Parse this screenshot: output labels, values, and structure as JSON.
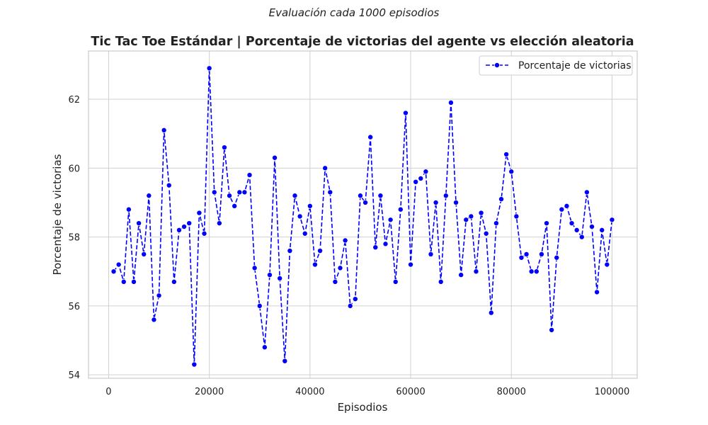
{
  "figure": {
    "suptitle": "Evaluación cada 1000 episodios"
  },
  "chart_data": {
    "type": "line",
    "title": "Tic Tac Toe Estándar | Porcentaje de victorias del agente vs elección aleatoria",
    "xlabel": "Episodios",
    "ylabel": "Porcentaje de victorias",
    "xlim": [
      -4000,
      105000
    ],
    "ylim": [
      53.9,
      63.4
    ],
    "xticks": [
      0,
      20000,
      40000,
      60000,
      80000,
      100000
    ],
    "yticks": [
      54,
      56,
      58,
      60,
      62
    ],
    "grid": true,
    "legend_position": "top-right",
    "colors": {
      "series": "#0000ff",
      "grid": "#d0d0d0",
      "spine": "#cccccc"
    },
    "line_style": "dashed",
    "marker": "circle",
    "series": [
      {
        "name": "Porcentaje de victorias",
        "x": [
          1000,
          2000,
          3000,
          4000,
          5000,
          6000,
          7000,
          8000,
          9000,
          10000,
          11000,
          12000,
          13000,
          14000,
          15000,
          16000,
          17000,
          18000,
          19000,
          20000,
          21000,
          22000,
          23000,
          24000,
          25000,
          26000,
          27000,
          28000,
          29000,
          30000,
          31000,
          32000,
          33000,
          34000,
          35000,
          36000,
          37000,
          38000,
          39000,
          40000,
          41000,
          42000,
          43000,
          44000,
          45000,
          46000,
          47000,
          48000,
          49000,
          50000,
          51000,
          52000,
          53000,
          54000,
          55000,
          56000,
          57000,
          58000,
          59000,
          60000,
          61000,
          62000,
          63000,
          64000,
          65000,
          66000,
          67000,
          68000,
          69000,
          70000,
          71000,
          72000,
          73000,
          74000,
          75000,
          76000,
          77000,
          78000,
          79000,
          80000,
          81000,
          82000,
          83000,
          84000,
          85000,
          86000,
          87000,
          88000,
          89000,
          90000,
          91000,
          92000,
          93000,
          94000,
          95000,
          96000,
          97000,
          98000,
          99000,
          100000
        ],
        "y": [
          57.0,
          57.2,
          56.7,
          58.8,
          56.7,
          58.4,
          57.5,
          59.2,
          55.6,
          56.3,
          61.1,
          59.5,
          56.7,
          58.2,
          58.3,
          58.4,
          54.3,
          58.7,
          58.1,
          62.9,
          59.3,
          58.4,
          60.6,
          59.2,
          58.9,
          59.3,
          59.3,
          59.8,
          57.1,
          56.0,
          54.8,
          56.9,
          60.3,
          56.8,
          54.4,
          57.6,
          59.2,
          58.6,
          58.1,
          58.9,
          57.2,
          57.6,
          60.0,
          59.3,
          56.7,
          57.1,
          57.9,
          56.0,
          56.2,
          59.2,
          59.0,
          60.9,
          57.7,
          59.2,
          57.8,
          58.5,
          56.7,
          58.8,
          61.6,
          57.2,
          59.6,
          59.7,
          59.9,
          57.5,
          59.0,
          56.7,
          59.2,
          61.9,
          59.0,
          56.9,
          58.5,
          58.6,
          57.0,
          58.7,
          58.1,
          55.8,
          58.4,
          59.1,
          60.4,
          59.9,
          58.6,
          57.4,
          57.5,
          57.0,
          57.0,
          57.5,
          58.4,
          55.3,
          57.4,
          58.8,
          58.9,
          58.4,
          58.2,
          58.0,
          59.3,
          58.3,
          56.4,
          58.2,
          57.2,
          58.5
        ]
      }
    ]
  }
}
